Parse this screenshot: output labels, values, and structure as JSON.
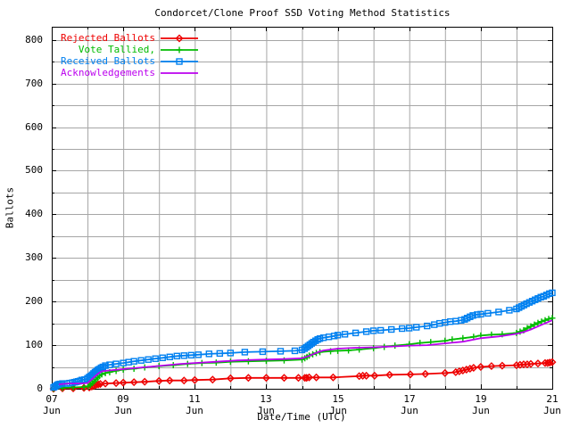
{
  "chart_data": {
    "type": "line",
    "title": "Condorcet/Clone Proof SSD Voting Method Statistics",
    "xlabel": "Date/Time (UTC)",
    "ylabel": "Ballots",
    "x_unit": "days since 07 Jun 00:00 UTC",
    "xlim": [
      0,
      14
    ],
    "ylim": [
      0,
      830
    ],
    "y_ticks": [
      0,
      100,
      200,
      300,
      400,
      500,
      600,
      700,
      800
    ],
    "y_minor_step": 50,
    "x_minor_step_days": 1,
    "x_ticks": [
      {
        "pos": 0,
        "line1": "07",
        "line2": "Jun"
      },
      {
        "pos": 2,
        "line1": "09",
        "line2": "Jun"
      },
      {
        "pos": 4,
        "line1": "11",
        "line2": "Jun"
      },
      {
        "pos": 6,
        "line1": "13",
        "line2": "Jun"
      },
      {
        "pos": 8,
        "line1": "15",
        "line2": "Jun"
      },
      {
        "pos": 10,
        "line1": "17",
        "line2": "Jun"
      },
      {
        "pos": 12,
        "line1": "19",
        "line2": "Jun"
      },
      {
        "pos": 14,
        "line1": "21",
        "line2": "Jun"
      }
    ],
    "grid": {
      "color": "#a6a6a6",
      "x_every_days": 1,
      "y_every": 50
    },
    "legend_position": "top-left-inside",
    "series": [
      {
        "name": "Rejected Ballots",
        "color": "#ee0000",
        "marker": "diamond",
        "points": [
          [
            0.05,
            0
          ],
          [
            0.3,
            1
          ],
          [
            0.6,
            1
          ],
          [
            0.9,
            2
          ],
          [
            1.05,
            3
          ],
          [
            1.12,
            5
          ],
          [
            1.18,
            7
          ],
          [
            1.24,
            9
          ],
          [
            1.3,
            10
          ],
          [
            1.36,
            11
          ],
          [
            1.5,
            12
          ],
          [
            1.8,
            13
          ],
          [
            2.0,
            14
          ],
          [
            2.3,
            15
          ],
          [
            2.6,
            16
          ],
          [
            3.0,
            18
          ],
          [
            3.3,
            19
          ],
          [
            3.7,
            19
          ],
          [
            4.0,
            20
          ],
          [
            4.5,
            21
          ],
          [
            5.0,
            24
          ],
          [
            5.5,
            25
          ],
          [
            6.0,
            25
          ],
          [
            6.5,
            25
          ],
          [
            6.9,
            25
          ],
          [
            7.08,
            25
          ],
          [
            7.13,
            25
          ],
          [
            7.2,
            26
          ],
          [
            7.4,
            26
          ],
          [
            7.87,
            26
          ],
          [
            8.6,
            29
          ],
          [
            8.7,
            30
          ],
          [
            8.8,
            30
          ],
          [
            9.03,
            30
          ],
          [
            9.45,
            32
          ],
          [
            10.03,
            33
          ],
          [
            10.45,
            34
          ],
          [
            11.0,
            36
          ],
          [
            11.3,
            38
          ],
          [
            11.4,
            40
          ],
          [
            11.5,
            42
          ],
          [
            11.6,
            44
          ],
          [
            11.7,
            46
          ],
          [
            11.8,
            48
          ],
          [
            12.0,
            50
          ],
          [
            12.3,
            52
          ],
          [
            12.6,
            53
          ],
          [
            13.0,
            54
          ],
          [
            13.1,
            55
          ],
          [
            13.2,
            56
          ],
          [
            13.3,
            56
          ],
          [
            13.4,
            57
          ],
          [
            13.6,
            58
          ],
          [
            13.8,
            59
          ],
          [
            13.87,
            59
          ],
          [
            13.93,
            60
          ],
          [
            14.0,
            61
          ]
        ]
      },
      {
        "name": "Vote Tallied,",
        "color": "#00bb00",
        "marker": "plus",
        "points": [
          [
            0.05,
            0
          ],
          [
            0.3,
            2
          ],
          [
            0.6,
            3
          ],
          [
            0.9,
            4
          ],
          [
            1.02,
            6
          ],
          [
            1.08,
            9
          ],
          [
            1.13,
            13
          ],
          [
            1.18,
            17
          ],
          [
            1.23,
            21
          ],
          [
            1.28,
            25
          ],
          [
            1.33,
            29
          ],
          [
            1.4,
            33
          ],
          [
            1.5,
            36
          ],
          [
            1.62,
            38
          ],
          [
            1.8,
            41
          ],
          [
            2.0,
            44
          ],
          [
            2.3,
            46
          ],
          [
            2.6,
            49
          ],
          [
            3.0,
            52
          ],
          [
            3.4,
            54
          ],
          [
            3.8,
            57
          ],
          [
            4.2,
            59
          ],
          [
            4.6,
            60
          ],
          [
            5.0,
            62
          ],
          [
            5.5,
            63
          ],
          [
            6.0,
            64
          ],
          [
            6.5,
            65
          ],
          [
            7.0,
            67
          ],
          [
            7.08,
            70
          ],
          [
            7.14,
            73
          ],
          [
            7.2,
            76
          ],
          [
            7.3,
            79
          ],
          [
            7.4,
            82
          ],
          [
            7.5,
            84
          ],
          [
            7.8,
            86
          ],
          [
            8.0,
            87
          ],
          [
            8.3,
            88
          ],
          [
            8.6,
            90
          ],
          [
            9.0,
            93
          ],
          [
            9.3,
            96
          ],
          [
            9.6,
            99
          ],
          [
            10.0,
            102
          ],
          [
            10.3,
            105
          ],
          [
            10.6,
            107
          ],
          [
            11.0,
            110
          ],
          [
            11.2,
            113
          ],
          [
            11.5,
            116
          ],
          [
            11.8,
            119
          ],
          [
            12.0,
            122
          ],
          [
            12.3,
            124
          ],
          [
            12.6,
            125
          ],
          [
            13.0,
            128
          ],
          [
            13.1,
            131
          ],
          [
            13.2,
            134
          ],
          [
            13.3,
            139
          ],
          [
            13.4,
            143
          ],
          [
            13.5,
            147
          ],
          [
            13.6,
            151
          ],
          [
            13.7,
            154
          ],
          [
            13.8,
            157
          ],
          [
            13.9,
            160
          ],
          [
            14.0,
            162
          ]
        ]
      },
      {
        "name": "Received Ballots",
        "color": "#0080f0",
        "marker": "square",
        "points": [
          [
            0.05,
            3
          ],
          [
            0.09,
            5
          ],
          [
            0.13,
            7
          ],
          [
            0.16,
            9
          ],
          [
            0.19,
            10
          ],
          [
            0.23,
            11
          ],
          [
            0.3,
            12
          ],
          [
            0.42,
            12
          ],
          [
            0.5,
            13
          ],
          [
            0.58,
            14
          ],
          [
            0.64,
            15
          ],
          [
            0.69,
            16
          ],
          [
            0.74,
            17
          ],
          [
            0.79,
            18
          ],
          [
            0.84,
            20
          ],
          [
            0.92,
            21
          ],
          [
            1.0,
            24
          ],
          [
            1.05,
            27
          ],
          [
            1.09,
            29
          ],
          [
            1.13,
            32
          ],
          [
            1.17,
            35
          ],
          [
            1.21,
            38
          ],
          [
            1.25,
            40
          ],
          [
            1.29,
            43
          ],
          [
            1.33,
            45
          ],
          [
            1.38,
            48
          ],
          [
            1.43,
            50
          ],
          [
            1.5,
            53
          ],
          [
            1.62,
            55
          ],
          [
            1.8,
            57
          ],
          [
            2.0,
            59
          ],
          [
            2.15,
            61
          ],
          [
            2.3,
            63
          ],
          [
            2.5,
            65
          ],
          [
            2.7,
            67
          ],
          [
            2.9,
            69
          ],
          [
            3.1,
            71
          ],
          [
            3.3,
            73
          ],
          [
            3.5,
            75
          ],
          [
            3.7,
            76
          ],
          [
            3.9,
            77
          ],
          [
            4.1,
            78
          ],
          [
            4.4,
            80
          ],
          [
            4.7,
            81
          ],
          [
            5.0,
            82
          ],
          [
            5.4,
            84
          ],
          [
            5.9,
            85
          ],
          [
            6.4,
            86
          ],
          [
            6.8,
            87
          ],
          [
            7.0,
            89
          ],
          [
            7.07,
            92
          ],
          [
            7.12,
            95
          ],
          [
            7.17,
            98
          ],
          [
            7.22,
            101
          ],
          [
            7.27,
            104
          ],
          [
            7.32,
            107
          ],
          [
            7.38,
            110
          ],
          [
            7.44,
            113
          ],
          [
            7.5,
            115
          ],
          [
            7.6,
            117
          ],
          [
            7.75,
            119
          ],
          [
            7.9,
            121
          ],
          [
            8.0,
            123
          ],
          [
            8.2,
            125
          ],
          [
            8.5,
            128
          ],
          [
            8.8,
            131
          ],
          [
            9.0,
            133
          ],
          [
            9.2,
            134
          ],
          [
            9.5,
            136
          ],
          [
            9.8,
            138
          ],
          [
            10.0,
            139
          ],
          [
            10.2,
            141
          ],
          [
            10.5,
            144
          ],
          [
            10.7,
            147
          ],
          [
            10.85,
            150
          ],
          [
            11.0,
            152
          ],
          [
            11.15,
            154
          ],
          [
            11.3,
            155
          ],
          [
            11.45,
            157
          ],
          [
            11.55,
            159
          ],
          [
            11.62,
            162
          ],
          [
            11.7,
            165
          ],
          [
            11.78,
            168
          ],
          [
            11.9,
            170
          ],
          [
            12.0,
            171
          ],
          [
            12.2,
            173
          ],
          [
            12.5,
            176
          ],
          [
            12.8,
            180
          ],
          [
            13.0,
            183
          ],
          [
            13.07,
            186
          ],
          [
            13.14,
            189
          ],
          [
            13.21,
            192
          ],
          [
            13.28,
            195
          ],
          [
            13.36,
            198
          ],
          [
            13.44,
            201
          ],
          [
            13.52,
            204
          ],
          [
            13.6,
            207
          ],
          [
            13.68,
            210
          ],
          [
            13.76,
            212
          ],
          [
            13.84,
            215
          ],
          [
            13.92,
            218
          ],
          [
            14.0,
            220
          ]
        ]
      },
      {
        "name": "Acknowledgements",
        "color": "#bb00ee",
        "marker": "none",
        "points": [
          [
            0.2,
            10
          ],
          [
            0.3,
            11
          ],
          [
            0.5,
            12
          ],
          [
            0.8,
            12
          ],
          [
            1.0,
            13
          ],
          [
            1.1,
            20
          ],
          [
            1.2,
            28
          ],
          [
            1.3,
            35
          ],
          [
            1.4,
            40
          ],
          [
            1.6,
            42
          ],
          [
            2.0,
            45
          ],
          [
            2.4,
            48
          ],
          [
            2.8,
            51
          ],
          [
            3.2,
            54
          ],
          [
            3.6,
            57
          ],
          [
            4.0,
            59
          ],
          [
            4.4,
            61
          ],
          [
            4.8,
            63
          ],
          [
            5.2,
            65
          ],
          [
            5.6,
            66
          ],
          [
            6.0,
            67
          ],
          [
            6.5,
            68
          ],
          [
            7.0,
            70
          ],
          [
            7.15,
            74
          ],
          [
            7.3,
            79
          ],
          [
            7.45,
            84
          ],
          [
            7.6,
            88
          ],
          [
            7.8,
            90
          ],
          [
            8.0,
            92
          ],
          [
            8.5,
            94
          ],
          [
            9.0,
            95
          ],
          [
            9.5,
            97
          ],
          [
            10.0,
            99
          ],
          [
            10.5,
            100
          ],
          [
            11.0,
            104
          ],
          [
            11.5,
            108
          ],
          [
            12.0,
            116
          ],
          [
            12.5,
            120
          ],
          [
            13.0,
            126
          ],
          [
            13.2,
            130
          ],
          [
            13.4,
            136
          ],
          [
            13.6,
            143
          ],
          [
            13.8,
            150
          ],
          [
            14.0,
            157
          ]
        ]
      }
    ]
  }
}
